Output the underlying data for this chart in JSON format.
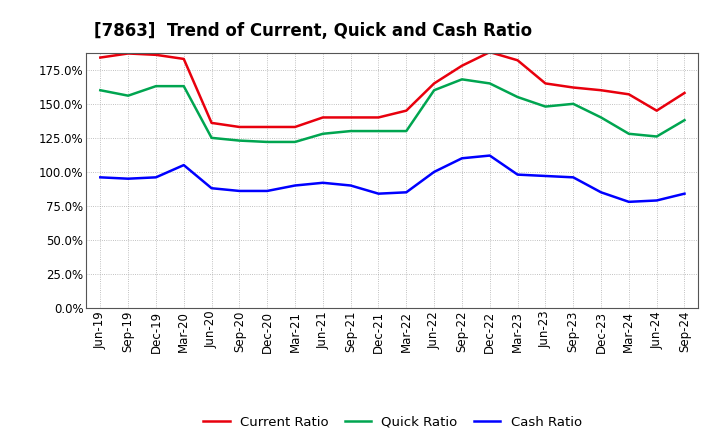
{
  "title": "[7863]  Trend of Current, Quick and Cash Ratio",
  "x_labels": [
    "Jun-19",
    "Sep-19",
    "Dec-19",
    "Mar-20",
    "Jun-20",
    "Sep-20",
    "Dec-20",
    "Mar-21",
    "Jun-21",
    "Sep-21",
    "Dec-21",
    "Mar-22",
    "Jun-22",
    "Sep-22",
    "Dec-22",
    "Mar-23",
    "Jun-23",
    "Sep-23",
    "Dec-23",
    "Mar-24",
    "Jun-24",
    "Sep-24"
  ],
  "current_ratio": [
    1.84,
    1.87,
    1.86,
    1.83,
    1.36,
    1.33,
    1.33,
    1.33,
    1.4,
    1.4,
    1.4,
    1.45,
    1.65,
    1.78,
    1.88,
    1.82,
    1.65,
    1.62,
    1.6,
    1.57,
    1.45,
    1.58
  ],
  "quick_ratio": [
    1.6,
    1.56,
    1.63,
    1.63,
    1.25,
    1.23,
    1.22,
    1.22,
    1.28,
    1.3,
    1.3,
    1.3,
    1.6,
    1.68,
    1.65,
    1.55,
    1.48,
    1.5,
    1.4,
    1.28,
    1.26,
    1.38
  ],
  "cash_ratio": [
    0.96,
    0.95,
    0.96,
    1.05,
    0.88,
    0.86,
    0.86,
    0.9,
    0.92,
    0.9,
    0.84,
    0.85,
    1.0,
    1.1,
    1.12,
    0.98,
    0.97,
    0.96,
    0.85,
    0.78,
    0.79,
    0.84
  ],
  "current_color": "#e8000d",
  "quick_color": "#00a550",
  "cash_color": "#0000ff",
  "ylim": [
    0.0,
    1.875
  ],
  "yticks": [
    0.0,
    0.25,
    0.5,
    0.75,
    1.0,
    1.25,
    1.5,
    1.75
  ],
  "background_color": "#ffffff",
  "grid_color": "#999999",
  "legend_labels": [
    "Current Ratio",
    "Quick Ratio",
    "Cash Ratio"
  ],
  "title_fontsize": 12,
  "tick_fontsize": 8.5,
  "legend_fontsize": 9.5,
  "line_width": 1.8
}
